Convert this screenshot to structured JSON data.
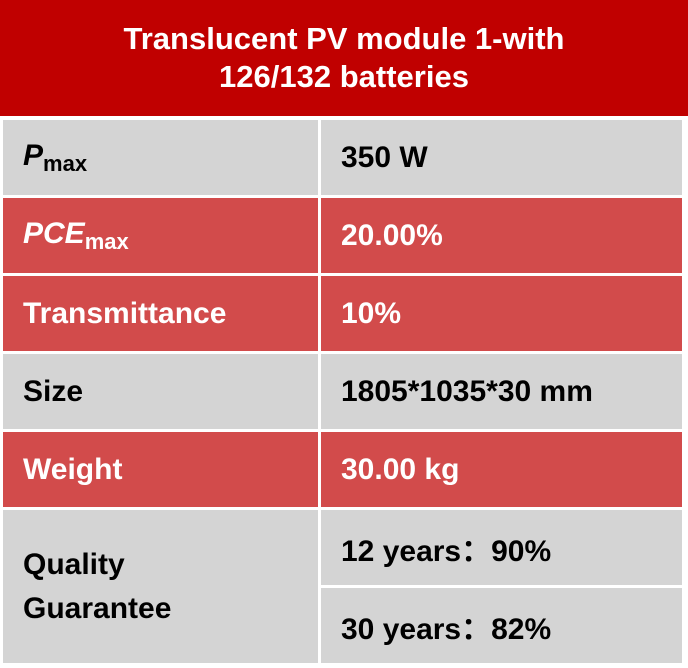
{
  "header": {
    "title": "Translucent PV module 1-with 126/132 batteries"
  },
  "table": {
    "rows": [
      {
        "label": "P",
        "label_sub": "max",
        "italic": true,
        "style": "gray",
        "values": [
          "350 W"
        ]
      },
      {
        "label": "PCE",
        "label_sub": "max",
        "italic": true,
        "style": "red",
        "values": [
          "20.00%"
        ]
      },
      {
        "label": "Transmittance",
        "style": "red",
        "values": [
          "10%"
        ]
      },
      {
        "label": "Size",
        "style": "gray",
        "values": [
          "1805*1035*30 mm"
        ]
      },
      {
        "label": "Weight",
        "style": "red",
        "values": [
          "30.00 kg"
        ]
      },
      {
        "label": "Quality Guarantee",
        "style": "gray",
        "values": [
          "12 years：90%",
          "30 years：82%"
        ]
      }
    ]
  }
}
